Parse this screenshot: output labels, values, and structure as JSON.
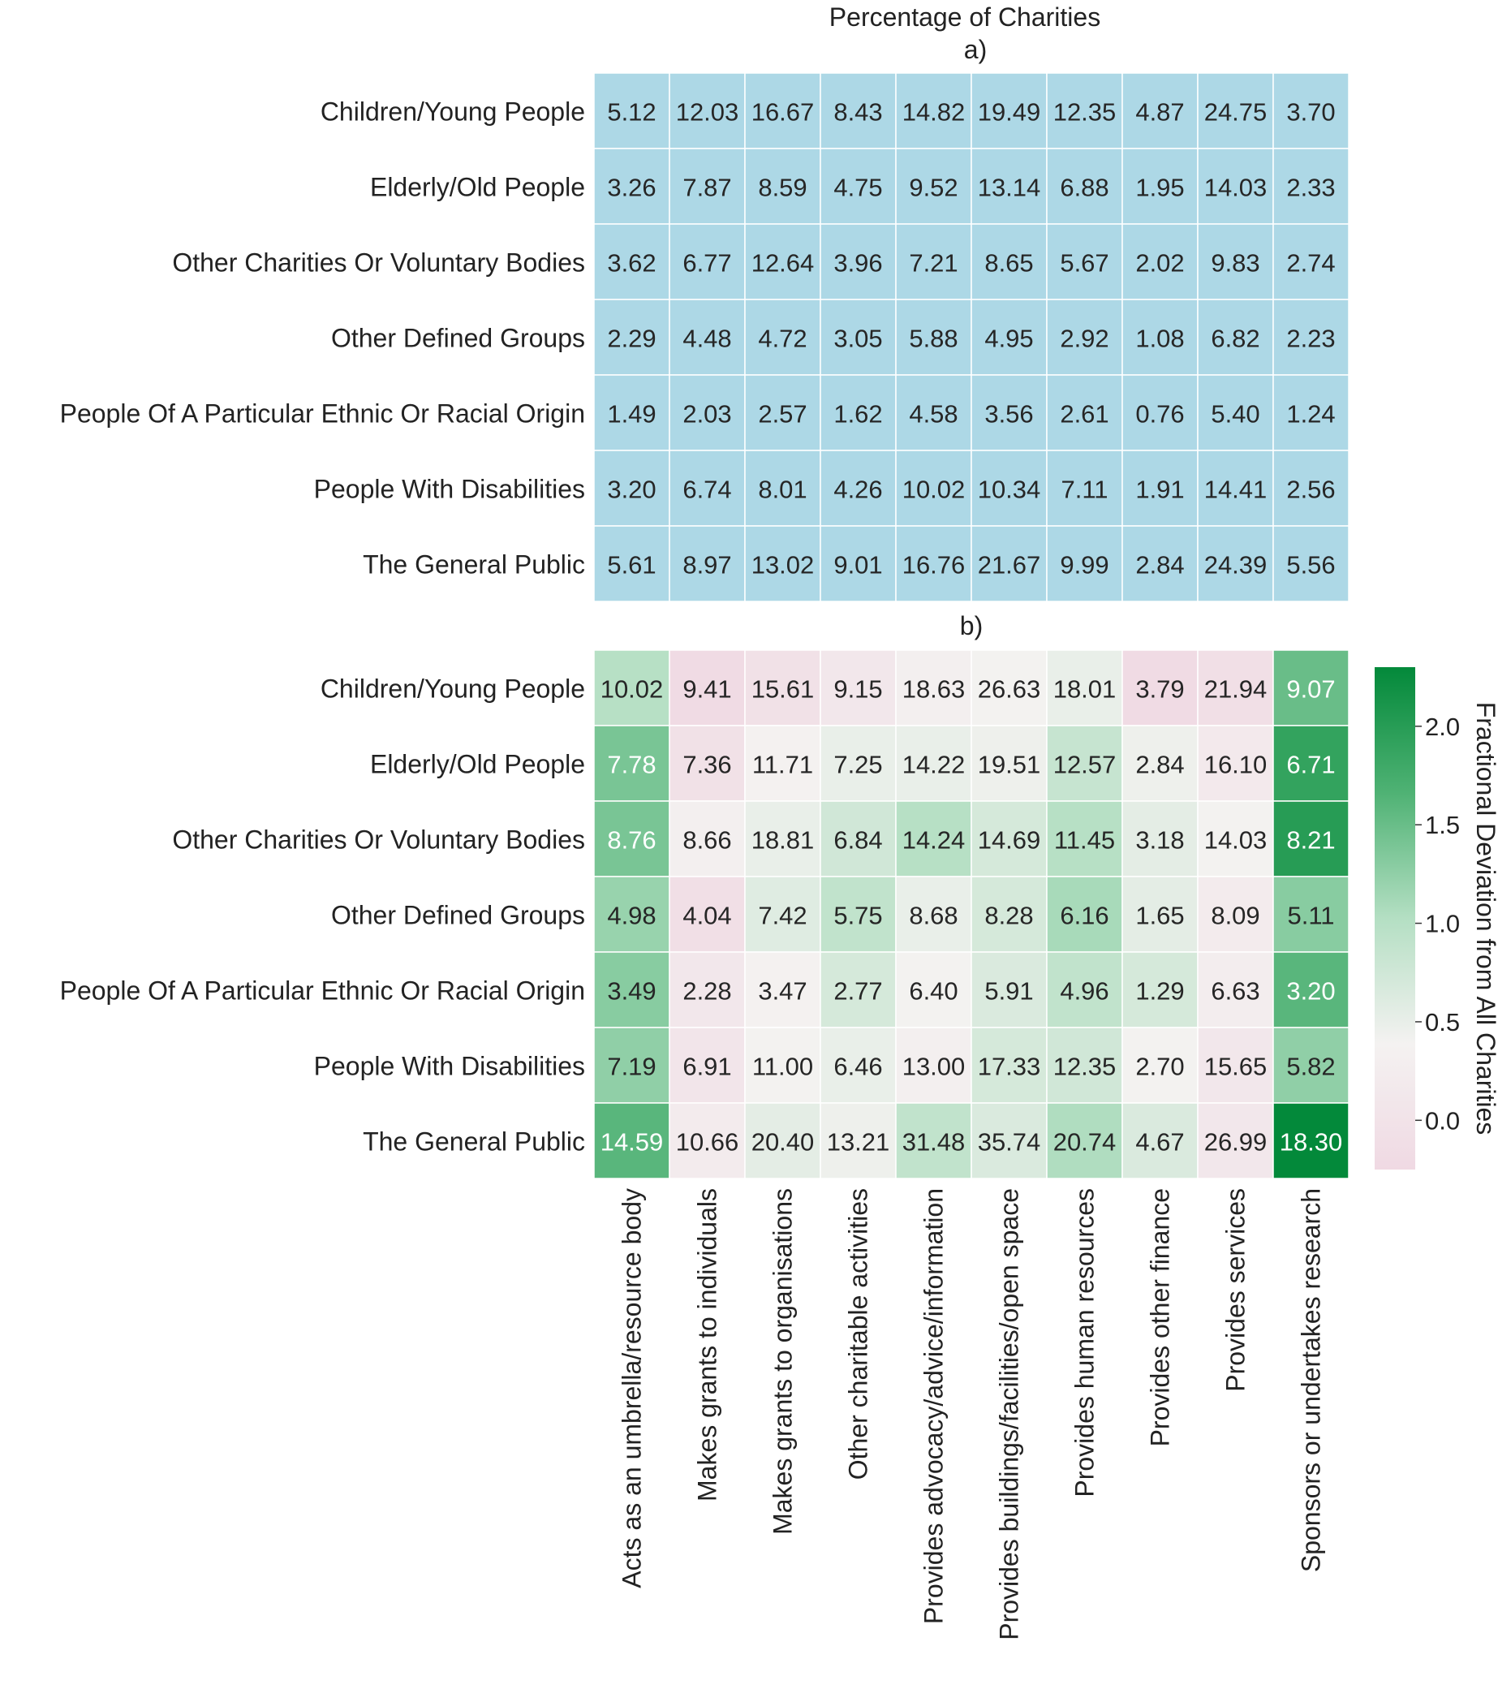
{
  "chart_data": [
    {
      "type": "heatmap",
      "title": "Percentage of Charities",
      "subtitle": "a)",
      "rows": [
        "Children/Young People",
        "Elderly/Old People",
        "Other Charities Or Voluntary Bodies",
        "Other Defined Groups",
        "People Of A Particular Ethnic Or Racial Origin",
        "People With Disabilities",
        "The General Public"
      ],
      "columns": [
        "Acts as an umbrella/resource body",
        "Makes grants to individuals",
        "Makes grants to organisations",
        "Other charitable activities",
        "Provides advocacy/advice/information",
        "Provides buildings/facilities/open space",
        "Provides human resources",
        "Provides other finance",
        "Provides services",
        "Sponsors or undertakes research"
      ],
      "values": [
        [
          "5.12",
          "12.03",
          "16.67",
          "8.43",
          "14.82",
          "19.49",
          "12.35",
          "4.87",
          "24.75",
          "3.70"
        ],
        [
          "3.26",
          "7.87",
          "8.59",
          "4.75",
          "9.52",
          "13.14",
          "6.88",
          "1.95",
          "14.03",
          "2.33"
        ],
        [
          "3.62",
          "6.77",
          "12.64",
          "3.96",
          "7.21",
          "8.65",
          "5.67",
          "2.02",
          "9.83",
          "2.74"
        ],
        [
          "2.29",
          "4.48",
          "4.72",
          "3.05",
          "5.88",
          "4.95",
          "2.92",
          "1.08",
          "6.82",
          "2.23"
        ],
        [
          "1.49",
          "2.03",
          "2.57",
          "1.62",
          "4.58",
          "3.56",
          "2.61",
          "0.76",
          "5.40",
          "1.24"
        ],
        [
          "3.20",
          "6.74",
          "8.01",
          "4.26",
          "10.02",
          "10.34",
          "7.11",
          "1.91",
          "14.41",
          "2.56"
        ],
        [
          "5.61",
          "8.97",
          "13.02",
          "9.01",
          "16.76",
          "21.67",
          "9.99",
          "2.84",
          "24.39",
          "5.56"
        ]
      ],
      "cell_color": "#add8e6"
    },
    {
      "type": "heatmap",
      "subtitle": "b)",
      "rows": [
        "Children/Young People",
        "Elderly/Old People",
        "Other Charities Or Voluntary Bodies",
        "Other Defined Groups",
        "People Of A Particular Ethnic Or Racial Origin",
        "People With Disabilities",
        "The General Public"
      ],
      "columns": [
        "Acts as an umbrella/resource body",
        "Makes grants to individuals",
        "Makes grants to organisations",
        "Other charitable activities",
        "Provides advocacy/advice/information",
        "Provides buildings/facilities/open space",
        "Provides human resources",
        "Provides other finance",
        "Provides services",
        "Sponsors or undertakes research"
      ],
      "values": [
        [
          "10.02",
          "9.41",
          "15.61",
          "9.15",
          "18.63",
          "26.63",
          "18.01",
          "3.79",
          "21.94",
          "9.07"
        ],
        [
          "7.78",
          "7.36",
          "11.71",
          "7.25",
          "14.22",
          "19.51",
          "12.57",
          "2.84",
          "16.10",
          "6.71"
        ],
        [
          "8.76",
          "8.66",
          "18.81",
          "6.84",
          "14.24",
          "14.69",
          "11.45",
          "3.18",
          "14.03",
          "8.21"
        ],
        [
          "4.98",
          "4.04",
          "7.42",
          "5.75",
          "8.68",
          "8.28",
          "6.16",
          "1.65",
          "8.09",
          "5.11"
        ],
        [
          "3.49",
          "2.28",
          "3.47",
          "2.77",
          "6.40",
          "5.91",
          "4.96",
          "1.29",
          "6.63",
          "3.20"
        ],
        [
          "7.19",
          "6.91",
          "11.00",
          "6.46",
          "13.00",
          "17.33",
          "12.35",
          "2.70",
          "15.65",
          "5.82"
        ],
        [
          "14.59",
          "10.66",
          "20.40",
          "13.21",
          "31.48",
          "35.74",
          "20.74",
          "4.67",
          "26.99",
          "18.30"
        ]
      ],
      "color_values": [
        [
          1.0,
          -0.2,
          -0.05,
          0.1,
          0.3,
          0.4,
          0.5,
          -0.2,
          -0.1,
          1.5
        ],
        [
          1.4,
          -0.05,
          0.35,
          0.5,
          0.5,
          0.45,
          0.85,
          0.45,
          0.15,
          1.9
        ],
        [
          1.4,
          0.3,
          0.5,
          0.75,
          1.0,
          0.7,
          1.0,
          0.55,
          0.4,
          2.0
        ],
        [
          1.2,
          -0.1,
          0.6,
          0.9,
          0.5,
          0.7,
          1.1,
          0.55,
          0.2,
          1.3
        ],
        [
          1.3,
          0.1,
          0.35,
          0.7,
          0.4,
          0.65,
          0.9,
          0.7,
          0.25,
          1.6
        ],
        [
          1.25,
          0.05,
          0.4,
          0.5,
          0.3,
          0.7,
          0.75,
          0.4,
          0.1,
          1.25
        ],
        [
          1.6,
          0.2,
          0.55,
          0.45,
          0.9,
          0.65,
          1.05,
          0.65,
          0.1,
          2.3
        ]
      ],
      "colorbar": {
        "label": "Fractional Deviation from All Charities",
        "range": [
          -0.25,
          2.3
        ],
        "ticks": [
          "0.0",
          "0.5",
          "1.0",
          "1.5",
          "2.0"
        ],
        "tick_values": [
          0,
          0.5,
          1.0,
          1.5,
          2.0
        ],
        "colors": [
          "#f0d9e3",
          "#f4f2f1",
          "#b4dfc3",
          "#4fb274",
          "#03893a"
        ]
      }
    }
  ]
}
